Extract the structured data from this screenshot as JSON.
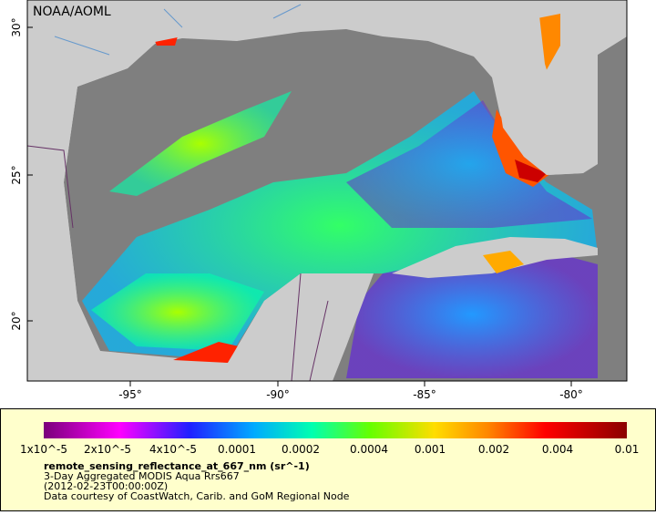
{
  "map": {
    "credit": "NOAA/AOML",
    "lat_labels": [
      "30°",
      "25°",
      "20°"
    ],
    "lon_labels": [
      "-95°",
      "-90°",
      "-85°",
      "-80°"
    ]
  },
  "colorbar": {
    "labels": [
      "1x10^-5",
      "2x10^-5",
      "4x10^-5",
      "0.0001",
      "0.0002",
      "0.0004",
      "0.001",
      "0.002",
      "0.004",
      "0.01"
    ]
  },
  "caption": {
    "variable": "remote_sensing_reflectance_at_667_nm (sr^-1)",
    "lines": [
      "3-Day Aggregated MODIS Aqua Rrs667",
      "(2012-02-23T00:00:00Z)",
      "Data courtesy of CoastWatch, Carib. and GoM Regional Node"
    ]
  }
}
